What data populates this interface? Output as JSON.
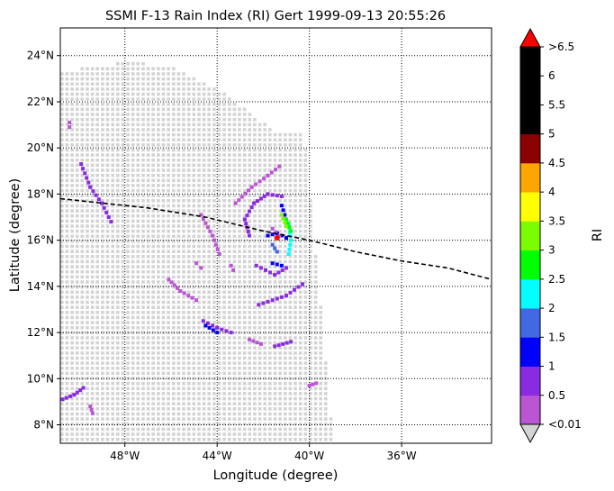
{
  "chart_data": {
    "type": "heatmap",
    "title": "SSMI F-13 Rain Index (RI) Gert 1999-09-13 20:55:26",
    "xlabel": "Longitude (degree)",
    "ylabel": "Latitude (degree)",
    "xlim": [
      -50.8,
      -32.1
    ],
    "ylim": [
      7.2,
      25.2
    ],
    "grid": true,
    "x_ticks": [
      {
        "value": -48,
        "label": "48°W"
      },
      {
        "value": -44,
        "label": "44°W"
      },
      {
        "value": -40,
        "label": "40°W"
      },
      {
        "value": -36,
        "label": "36°W"
      }
    ],
    "y_ticks": [
      {
        "value": 8,
        "label": "8°N"
      },
      {
        "value": 10,
        "label": "10°N"
      },
      {
        "value": 12,
        "label": "12°N"
      },
      {
        "value": 14,
        "label": "14°N"
      },
      {
        "value": 16,
        "label": "16°N"
      },
      {
        "value": 18,
        "label": "18°N"
      },
      {
        "value": 20,
        "label": "20°N"
      },
      {
        "value": 22,
        "label": "22°N"
      },
      {
        "value": 24,
        "label": "24°N"
      }
    ],
    "colorbar": {
      "label": "RI",
      "under_color": "#d3d3d3",
      "over_color": "#ff0000",
      "bins": [
        {
          "upper": 0.5,
          "color": "#ba55d3"
        },
        {
          "upper": 1.0,
          "color": "#8a2be2"
        },
        {
          "upper": 1.5,
          "color": "#0000ff"
        },
        {
          "upper": 2.0,
          "color": "#4169e1"
        },
        {
          "upper": 2.5,
          "color": "#00ffff"
        },
        {
          "upper": 3.0,
          "color": "#00ff00"
        },
        {
          "upper": 3.5,
          "color": "#7cfc00"
        },
        {
          "upper": 4.0,
          "color": "#ffff00"
        },
        {
          "upper": 4.5,
          "color": "#ffa500"
        },
        {
          "upper": 5.0,
          "color": "#8b0000"
        },
        {
          "upper": 5.5,
          "color": "#000000"
        },
        {
          "upper": 6.0,
          "color": "#000000"
        },
        {
          "upper": 6.5,
          "color": "#000000"
        }
      ],
      "tick_labels": [
        "<0.01",
        "0.5",
        "1",
        "1.5",
        "2",
        "2.5",
        "3",
        "3.5",
        "4",
        "4.5",
        "5",
        "5.5",
        "6",
        ">6.5"
      ]
    },
    "swath_color": "#d3d3d3",
    "swath_right_edge": {
      "lon_at_24N": -40.6,
      "lon_at_7N": -39.0
    },
    "swath_top_edge": [
      [
        -50.8,
        23.4
      ],
      [
        -48.0,
        23.8
      ],
      [
        -46.0,
        23.6
      ],
      [
        -44.0,
        22.6
      ],
      [
        -41.6,
        20.8
      ]
    ],
    "track": {
      "style": "dashed",
      "color": "#000000",
      "points": [
        [
          -50.8,
          17.8
        ],
        [
          -47.0,
          17.4
        ],
        [
          -44.5,
          17.0
        ],
        [
          -42.0,
          16.4
        ],
        [
          -40.0,
          16.0
        ],
        [
          -38.0,
          15.5
        ],
        [
          -36.0,
          15.1
        ],
        [
          -34.0,
          14.8
        ],
        [
          -32.1,
          14.3
        ]
      ]
    },
    "storm_center": {
      "lon": -41.4,
      "lat": 16.1,
      "color": "#ff0000"
    },
    "rain_bands": [
      {
        "points": [
          [
            -43.2,
            17.6
          ],
          [
            -42.5,
            18.3
          ],
          [
            -41.8,
            18.8
          ],
          [
            -41.3,
            19.2
          ]
        ],
        "ri": 0.4
      },
      {
        "points": [
          [
            -42.6,
            16.2
          ],
          [
            -42.8,
            16.9
          ],
          [
            -42.4,
            17.6
          ],
          [
            -41.8,
            18.0
          ],
          [
            -41.2,
            17.9
          ]
        ],
        "ri": 0.8
      },
      {
        "points": [
          [
            -42.3,
            14.9
          ],
          [
            -41.5,
            14.5
          ],
          [
            -41.0,
            14.8
          ]
        ],
        "ri": 0.8
      },
      {
        "points": [
          [
            -41.8,
            16.2
          ],
          [
            -41.4,
            16.3
          ],
          [
            -41.0,
            16.1
          ]
        ],
        "ri": 1.2
      },
      {
        "points": [
          [
            -41.2,
            17.5
          ],
          [
            -41.0,
            16.9
          ]
        ],
        "ri": 1.2
      },
      {
        "points": [
          [
            -41.6,
            15.0
          ],
          [
            -41.2,
            14.9
          ]
        ],
        "ri": 1.2
      },
      {
        "points": [
          [
            -41.6,
            15.8
          ],
          [
            -41.4,
            15.5
          ]
        ],
        "ri": 1.7
      },
      {
        "points": [
          [
            -40.9,
            16.7
          ],
          [
            -40.8,
            16.0
          ],
          [
            -40.9,
            15.4
          ]
        ],
        "ri": 2.3
      },
      {
        "points": [
          [
            -41.0,
            16.9
          ],
          [
            -40.8,
            16.4
          ]
        ],
        "ri": 2.8
      },
      {
        "points": [
          [
            -41.2,
            17.1
          ],
          [
            -41.0,
            16.6
          ]
        ],
        "ri": 3.2
      },
      {
        "points": [
          [
            -41.6,
            16.5
          ],
          [
            -41.3,
            16.2
          ]
        ],
        "ri": 0.4
      },
      {
        "points": [
          [
            -42.2,
            13.2
          ],
          [
            -41.0,
            13.6
          ],
          [
            -40.3,
            14.1
          ]
        ],
        "ri": 0.8
      },
      {
        "points": [
          [
            -44.6,
            12.5
          ],
          [
            -44.0,
            12.2
          ],
          [
            -43.4,
            12.0
          ]
        ],
        "ri": 0.8
      },
      {
        "points": [
          [
            -44.5,
            12.3
          ],
          [
            -44.0,
            12.0
          ]
        ],
        "ri": 1.2
      },
      {
        "points": [
          [
            -46.1,
            14.3
          ],
          [
            -45.6,
            13.8
          ],
          [
            -44.9,
            13.4
          ]
        ],
        "ri": 0.4
      },
      {
        "points": [
          [
            -42.6,
            11.7
          ],
          [
            -42.1,
            11.5
          ]
        ],
        "ri": 0.4
      },
      {
        "points": [
          [
            -41.5,
            11.4
          ],
          [
            -40.8,
            11.6
          ]
        ],
        "ri": 0.8
      },
      {
        "points": [
          [
            -49.9,
            19.3
          ],
          [
            -49.5,
            18.3
          ],
          [
            -49.0,
            17.6
          ],
          [
            -48.6,
            16.8
          ]
        ],
        "ri": 0.8
      },
      {
        "points": [
          [
            -44.7,
            17.1
          ],
          [
            -44.2,
            16.2
          ],
          [
            -43.9,
            15.4
          ]
        ],
        "ri": 0.4
      },
      {
        "points": [
          [
            -50.7,
            9.1
          ],
          [
            -50.2,
            9.3
          ],
          [
            -49.8,
            9.6
          ]
        ],
        "ri": 0.8
      },
      {
        "points": [
          [
            -49.5,
            8.8
          ],
          [
            -49.4,
            8.5
          ]
        ],
        "ri": 0.4
      },
      {
        "points": [
          [
            -40.0,
            9.7
          ],
          [
            -39.7,
            9.8
          ]
        ],
        "ri": 0.4
      },
      {
        "points": [
          [
            -50.4,
            21.1
          ],
          [
            -50.4,
            20.9
          ]
        ],
        "ri": 0.4
      },
      {
        "points": [
          [
            -43.4,
            14.9
          ],
          [
            -43.3,
            14.7
          ]
        ],
        "ri": 0.4
      },
      {
        "points": [
          [
            -44.9,
            15.0
          ],
          [
            -44.7,
            14.8
          ]
        ],
        "ri": 0.4
      }
    ]
  }
}
